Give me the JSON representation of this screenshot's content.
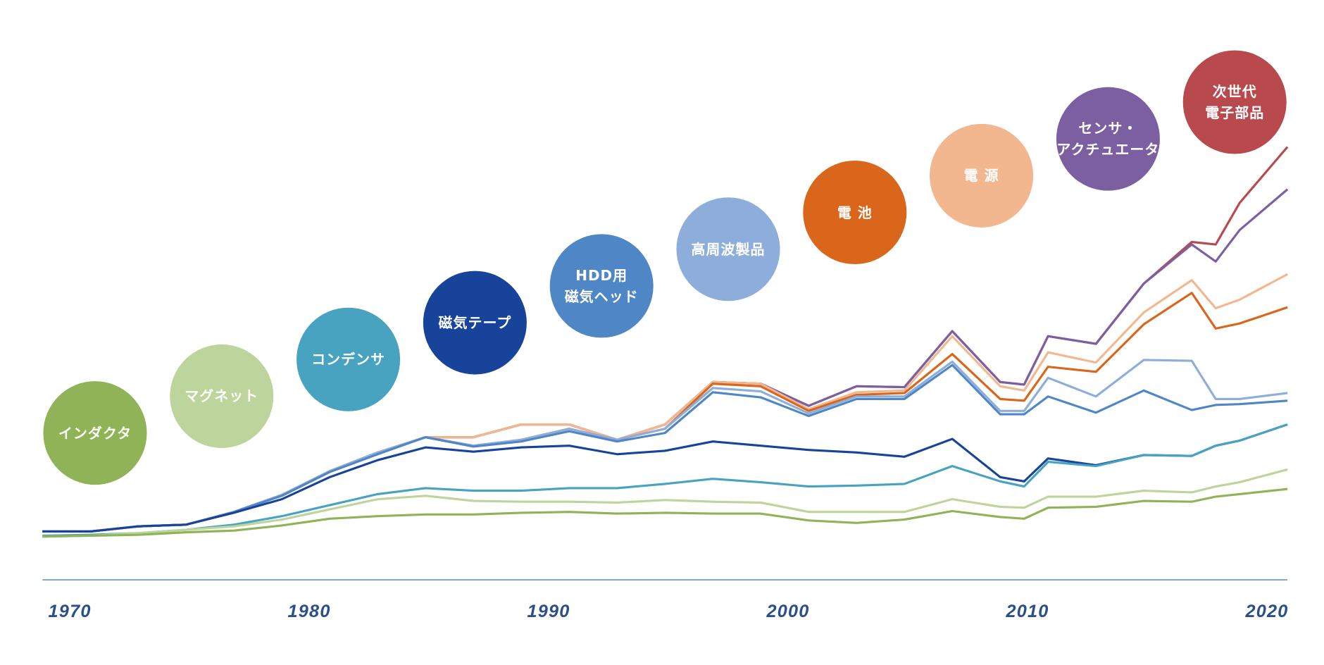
{
  "chart_data": {
    "type": "stacked-line",
    "x": [
      1969,
      1971,
      1973,
      1975,
      1977,
      1979,
      1981,
      1983,
      1985,
      1987,
      1989,
      1991,
      1993,
      1995,
      1997,
      1999,
      2001,
      2003,
      2005,
      2007,
      2009,
      2010,
      2011,
      2013,
      2015,
      2017,
      2018,
      2019,
      2021
    ],
    "xlim": [
      1969,
      2021
    ],
    "xticks": [
      1970,
      1980,
      1990,
      2000,
      2010,
      2020
    ],
    "ylim": [
      0,
      640
    ],
    "series": [
      {
        "name": "インダクタ",
        "color": "#8fb356",
        "values": [
          51,
          52,
          53,
          56,
          58,
          64,
          72,
          75,
          77,
          77,
          79,
          80,
          78,
          79,
          78,
          78,
          70,
          67,
          71,
          81,
          74,
          72,
          85,
          86,
          93,
          92,
          98,
          101,
          107
        ]
      },
      {
        "name": "マグネット",
        "color": "#bdd59c",
        "values": [
          0,
          0,
          2,
          3,
          5,
          7,
          11,
          20,
          22,
          16,
          13,
          12,
          13,
          15,
          14,
          13,
          10,
          13,
          9,
          14,
          12,
          13,
          13,
          12,
          12,
          11,
          12,
          14,
          23
        ]
      },
      {
        "name": "コンデンサ",
        "color": "#47a3bf",
        "values": [
          1,
          1,
          0,
          0,
          2,
          4,
          5,
          6,
          9,
          12,
          13,
          16,
          17,
          19,
          27,
          24,
          30,
          31,
          33,
          39,
          30,
          25,
          41,
          36,
          42,
          43,
          48,
          49,
          53
        ]
      },
      {
        "name": "磁気テープ",
        "color": "#17439a",
        "values": [
          5,
          4,
          8,
          6,
          14,
          20,
          33,
          40,
          48,
          46,
          51,
          50,
          40,
          39,
          44,
          43,
          43,
          39,
          32,
          32,
          5,
          6,
          4,
          1,
          0,
          0,
          0,
          0,
          0
        ]
      },
      {
        "name": "HDD用\n磁気ヘッド",
        "color": "#4f86c6",
        "values": [
          0,
          0,
          0,
          0,
          1,
          4,
          6,
          7,
          12,
          6,
          7,
          17,
          15,
          21,
          58,
          57,
          40,
          63,
          68,
          87,
          74,
          79,
          73,
          62,
          76,
          54,
          48,
          43,
          28
        ]
      },
      {
        "name": "高周波製品",
        "color": "#8daedb",
        "values": [
          0,
          0,
          0,
          0,
          0,
          1,
          1,
          2,
          0,
          1,
          2,
          3,
          2,
          5,
          5,
          7,
          3,
          3,
          3,
          4,
          4,
          4,
          22,
          19,
          36,
          58,
          7,
          6,
          9
        ]
      },
      {
        "name": "電 池",
        "color": "#d9661a",
        "values": [
          0,
          0,
          0,
          0,
          0,
          0,
          0,
          0,
          0,
          0,
          0,
          0,
          0,
          0,
          5,
          6,
          3,
          2,
          4,
          9,
          14,
          12,
          13,
          29,
          42,
          80,
          83,
          89,
          101
        ]
      },
      {
        "name": "電 源",
        "color": "#f2b78f",
        "values": [
          0,
          0,
          0,
          0,
          0,
          0,
          0,
          0,
          0,
          10,
          18,
          5,
          0,
          5,
          2,
          3,
          2,
          3,
          3,
          21,
          15,
          12,
          17,
          11,
          14,
          15,
          24,
          28,
          39
        ]
      },
      {
        "name": "センサ・\nアクチュエータ",
        "color": "#7b5fa0",
        "values": [
          0,
          0,
          0,
          0,
          0,
          0,
          0,
          0,
          0,
          0,
          0,
          0,
          0,
          0,
          0,
          0,
          4,
          7,
          4,
          6,
          5,
          7,
          19,
          22,
          34,
          42,
          55,
          82,
          100
        ]
      },
      {
        "name": "次世代\n電子部品",
        "color": "#b84a4e",
        "values": [
          0,
          0,
          0,
          0,
          0,
          0,
          0,
          0,
          0,
          0,
          0,
          0,
          0,
          0,
          0,
          0,
          0,
          0,
          0,
          0,
          0,
          0,
          0,
          0,
          0,
          3,
          20,
          32,
          50
        ]
      }
    ]
  }
}
